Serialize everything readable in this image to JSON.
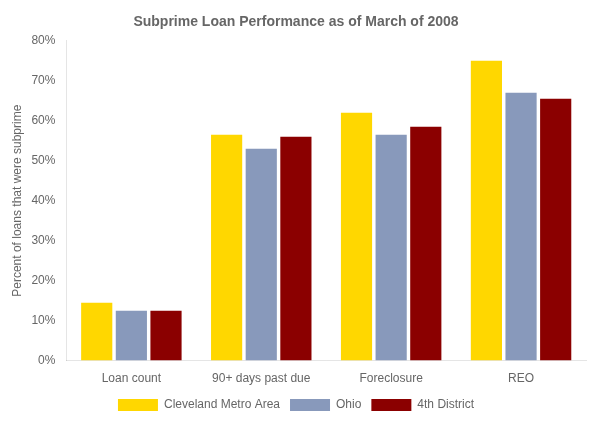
{
  "chart_data": {
    "type": "bar",
    "title": "Subprime Loan Performance as of March of 2008",
    "categories": [
      "Loan count",
      "90+ days past due",
      "Foreclosure",
      "REO"
    ],
    "series": [
      {
        "name": "Cleveland Metro Area",
        "color": "#FFD700",
        "values": [
          14.5,
          56.5,
          62.0,
          75.0
        ]
      },
      {
        "name": "Ohio",
        "color": "#8899BB",
        "values": [
          12.5,
          53.0,
          56.5,
          67.0
        ]
      },
      {
        "name": "4th District",
        "color": "#8B0000",
        "values": [
          12.5,
          56.0,
          58.5,
          65.5
        ]
      }
    ],
    "ylabel": "Percent of loans that were subprime",
    "ylim": [
      0,
      80
    ],
    "yticks": [
      {
        "value": 0,
        "label": "0%"
      },
      {
        "value": 10,
        "label": "10%"
      },
      {
        "value": 20,
        "label": "20%"
      },
      {
        "value": 30,
        "label": "30%"
      },
      {
        "value": 40,
        "label": "40%"
      },
      {
        "value": 50,
        "label": "50%"
      },
      {
        "value": 60,
        "label": "60%"
      },
      {
        "value": 70,
        "label": "70%"
      },
      {
        "value": 80,
        "label": "80%"
      }
    ],
    "grid": false,
    "legend": "bottom"
  }
}
